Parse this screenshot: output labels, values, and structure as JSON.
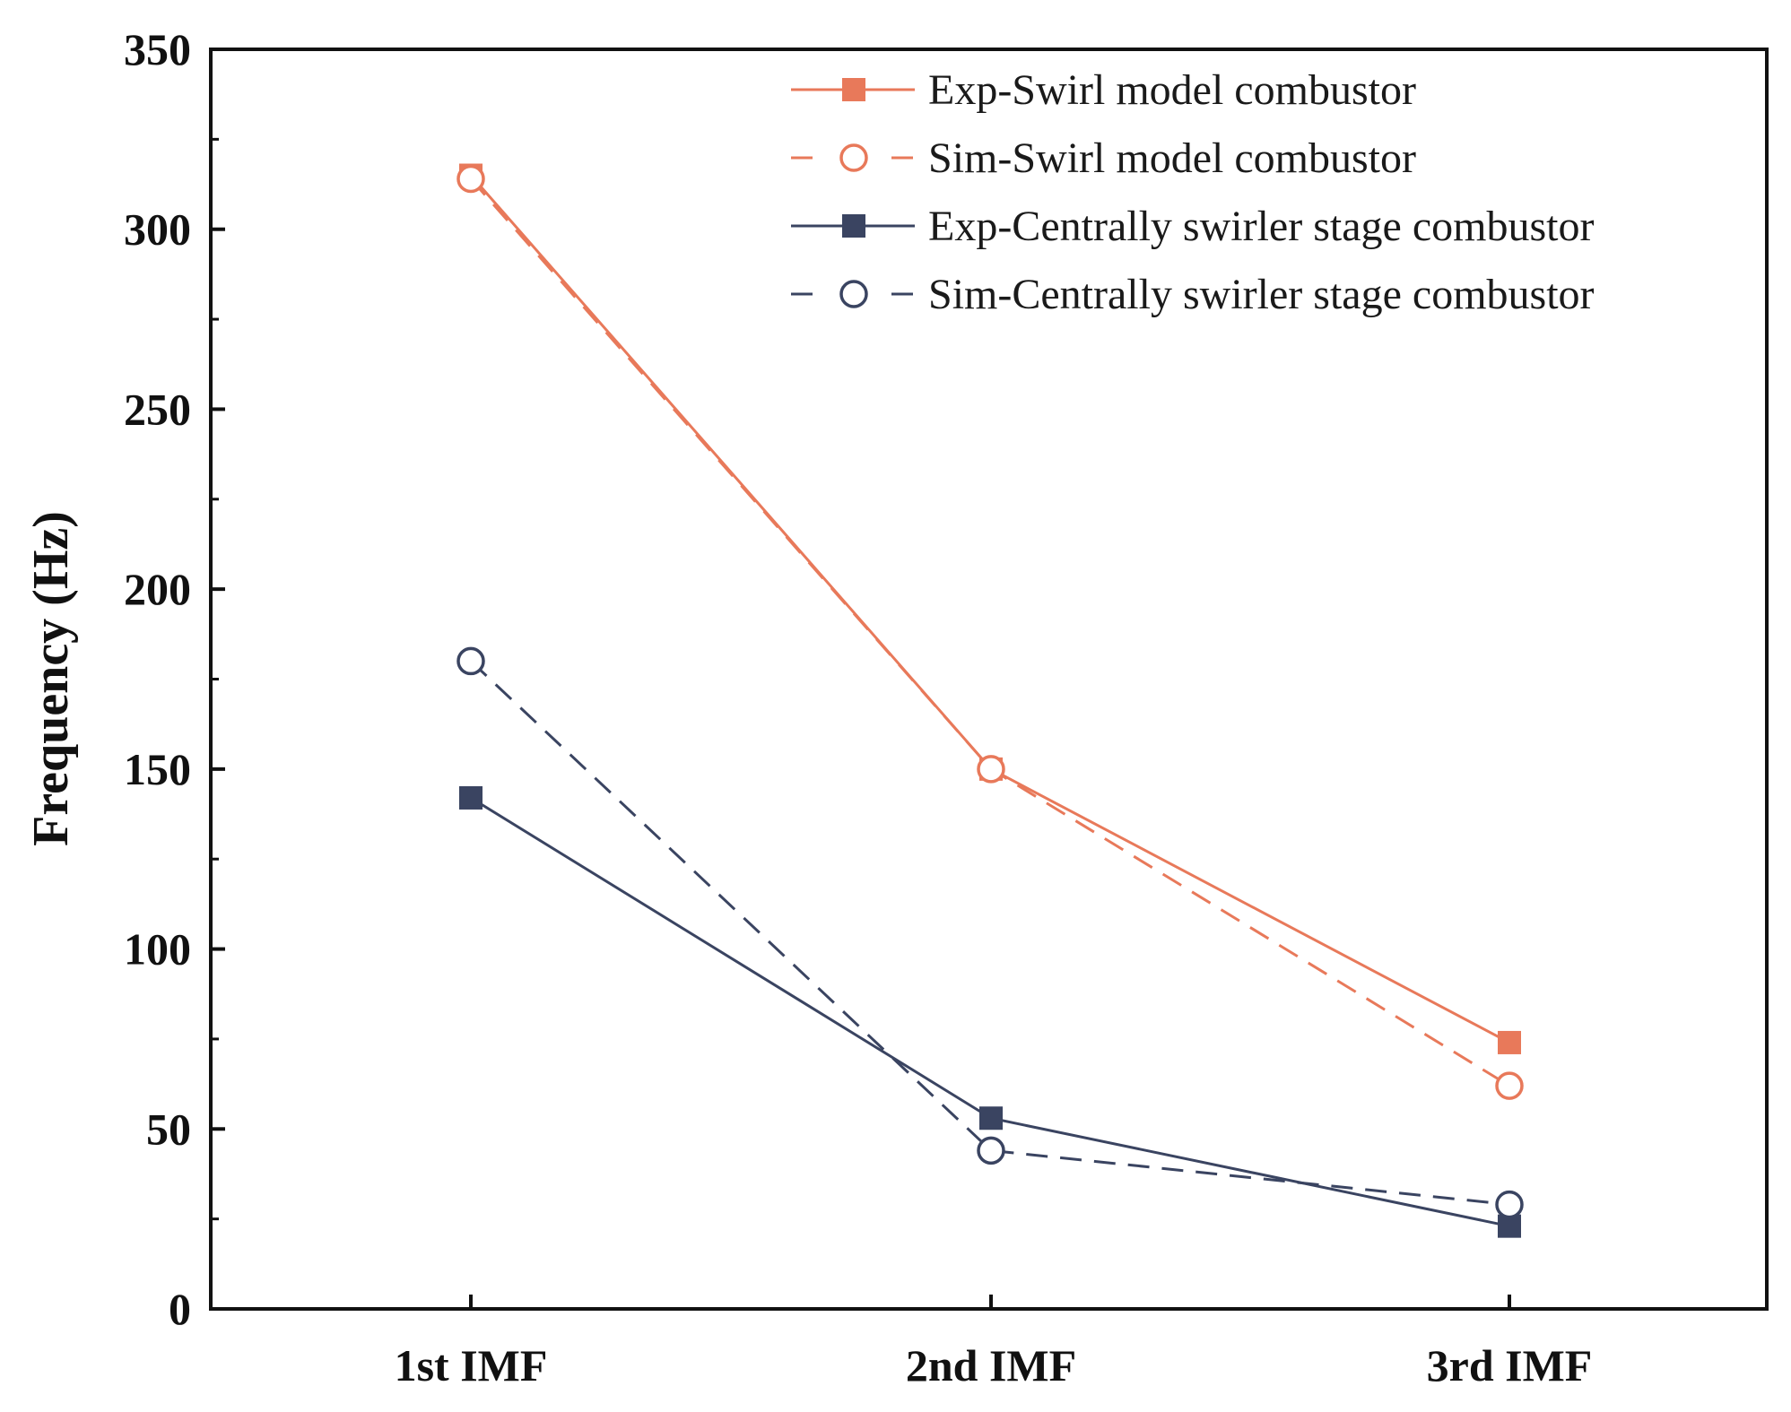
{
  "chart_data": {
    "type": "line",
    "title": "",
    "xlabel": "",
    "ylabel": "Frequency (Hz)",
    "categories": [
      "1st IMF",
      "2nd IMF",
      "3rd IMF"
    ],
    "ylim": [
      0,
      350
    ],
    "yticks": [
      0,
      50,
      100,
      150,
      200,
      250,
      300,
      350
    ],
    "grid": false,
    "legend_position": "top-right",
    "series": [
      {
        "name": "Exp-Swirl model combustor",
        "values": [
          315,
          150,
          74
        ],
        "color": "#E8795A",
        "dash": "solid",
        "marker": "filled-square"
      },
      {
        "name": "Sim-Swirl model combustor",
        "values": [
          314,
          150,
          62
        ],
        "color": "#E8795A",
        "dash": "dashed",
        "marker": "open-circle"
      },
      {
        "name": "Exp-Centrally swirler stage combustor",
        "values": [
          142,
          53,
          23
        ],
        "color": "#3A4461",
        "dash": "solid",
        "marker": "filled-square"
      },
      {
        "name": "Sim-Centrally swirler stage combustor",
        "values": [
          180,
          44,
          29
        ],
        "color": "#3A4461",
        "dash": "dashed",
        "marker": "open-circle"
      }
    ]
  }
}
